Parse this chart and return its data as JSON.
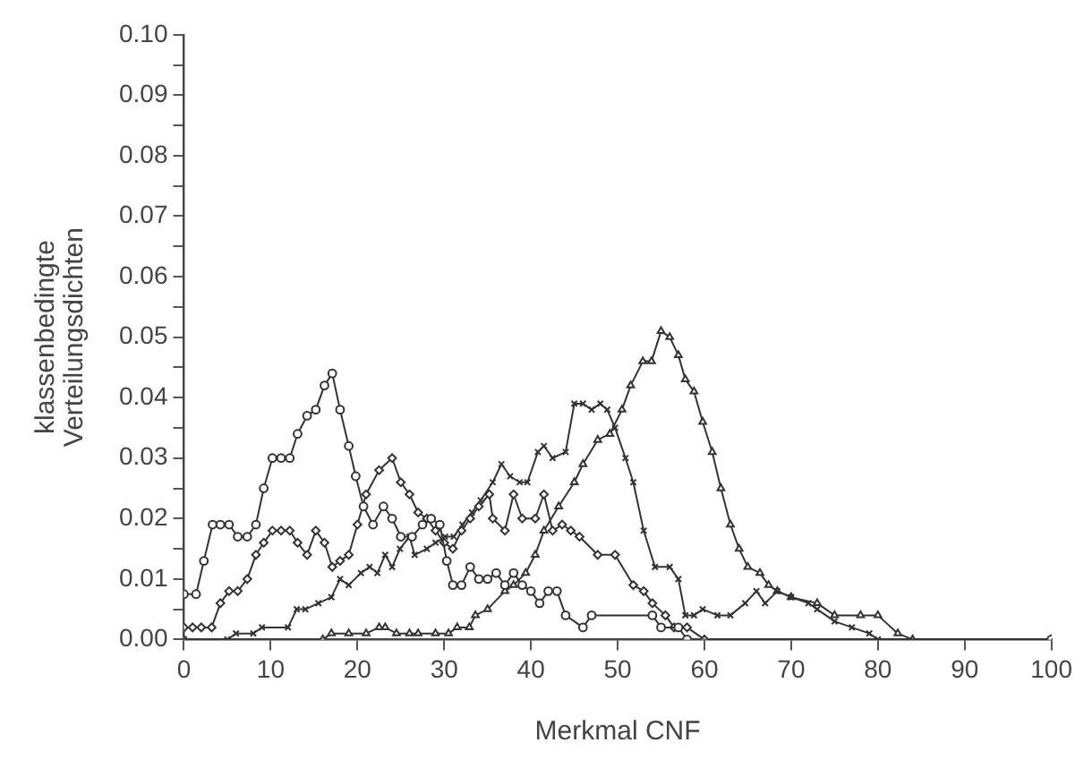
{
  "chart_data": {
    "type": "line",
    "xlabel": "Merkmal CNF",
    "ylabel": "klassenbedingte\nVerteilungsdichten",
    "xlim": [
      0,
      100
    ],
    "xticks": [
      0,
      10,
      20,
      30,
      40,
      50,
      60,
      70,
      80,
      90,
      100
    ],
    "ylim": [
      0,
      0.1
    ],
    "yticks": [
      {
        "value": 0,
        "label": "0.00"
      },
      {
        "value": 0.005,
        "label": null
      },
      {
        "value": 0.01,
        "label": "0.01"
      },
      {
        "value": 0.015,
        "label": null
      },
      {
        "value": 0.02,
        "label": "0.02"
      },
      {
        "value": 0.025,
        "label": null
      },
      {
        "value": 0.03,
        "label": "0.03"
      },
      {
        "value": 0.035,
        "label": null
      },
      {
        "value": 0.04,
        "label": "0.04"
      },
      {
        "value": 0.045,
        "label": null
      },
      {
        "value": 0.05,
        "label": "0.05"
      },
      {
        "value": 0.055,
        "label": null
      },
      {
        "value": 0.06,
        "label": "0.06"
      },
      {
        "value": 0.065,
        "label": null
      },
      {
        "value": 0.07,
        "label": "0.07"
      },
      {
        "value": 0.075,
        "label": null
      },
      {
        "value": 0.08,
        "label": "0.08"
      },
      {
        "value": 0.085,
        "label": null
      },
      {
        "value": 0.09,
        "label": "0.09"
      },
      {
        "value": 0.095,
        "label": null
      },
      {
        "value": 0.1,
        "label": "0.10"
      }
    ],
    "grid": false,
    "legend": false,
    "line_style": "solid",
    "series": [
      {
        "color": "#333333",
        "marker": "circle",
        "x": [
          0,
          1.4,
          2.3,
          3.3,
          4.2,
          5.2,
          6.2,
          7.3,
          8.3,
          9.2,
          10.2,
          11.2,
          12.2,
          13.1,
          14.2,
          15.2,
          16.2,
          17.1,
          18,
          19,
          19.8,
          20.7,
          21.8,
          23,
          24,
          25,
          26.3,
          27.5,
          28.5,
          29.5,
          30.3,
          31,
          32,
          33,
          34,
          35,
          36,
          37,
          38,
          39,
          40,
          41,
          42,
          43,
          44,
          46,
          47,
          54,
          55,
          57,
          58,
          100
        ],
        "values": [
          0.0075,
          0.0075,
          0.013,
          0.019,
          0.019,
          0.019,
          0.017,
          0.017,
          0.019,
          0.025,
          0.03,
          0.03,
          0.03,
          0.034,
          0.037,
          0.038,
          0.042,
          0.044,
          0.038,
          0.032,
          0.027,
          0.022,
          0.019,
          0.022,
          0.02,
          0.017,
          0.017,
          0.019,
          0.02,
          0.019,
          0.013,
          0.009,
          0.009,
          0.012,
          0.01,
          0.01,
          0.011,
          0.009,
          0.011,
          0.009,
          0.008,
          0.006,
          0.008,
          0.008,
          0.004,
          0.002,
          0.004,
          0.004,
          0.002,
          0.002,
          0,
          0
        ]
      },
      {
        "color": "#333333",
        "marker": "diamond",
        "x": [
          0,
          1,
          2,
          3.2,
          4.2,
          5.2,
          6.2,
          7.3,
          8.3,
          9.2,
          10.2,
          11.2,
          12.2,
          13.1,
          14.2,
          15.2,
          16.2,
          17.1,
          18,
          19,
          20,
          21,
          22.5,
          24,
          25,
          26,
          27,
          28,
          29,
          30,
          31,
          32,
          33,
          34,
          35.2,
          35.6,
          37,
          38,
          39,
          40.5,
          41.5,
          42.5,
          43.6,
          44.6,
          45.6,
          47.7,
          49.7,
          51.8,
          53,
          54,
          55.5,
          56.5,
          58,
          60,
          100
        ],
        "values": [
          0.002,
          0.002,
          0.002,
          0.002,
          0.006,
          0.008,
          0.008,
          0.01,
          0.014,
          0.016,
          0.018,
          0.018,
          0.018,
          0.016,
          0.014,
          0.018,
          0.016,
          0.012,
          0.013,
          0.014,
          0.019,
          0.024,
          0.028,
          0.03,
          0.026,
          0.024,
          0.021,
          0.02,
          0.018,
          0.016,
          0.015,
          0.018,
          0.02,
          0.022,
          0.024,
          0.02,
          0.018,
          0.024,
          0.02,
          0.02,
          0.024,
          0.018,
          0.019,
          0.018,
          0.017,
          0.014,
          0.014,
          0.009,
          0.008,
          0.006,
          0.004,
          0.002,
          0.002,
          0,
          0
        ]
      },
      {
        "color": "#333333",
        "marker": "cross",
        "x": [
          0,
          5,
          6,
          8,
          9,
          12,
          13,
          14,
          15.5,
          17,
          18,
          19,
          20.4,
          21.4,
          22.3,
          23.2,
          24,
          24.9,
          26,
          26.6,
          28,
          29,
          30.1,
          31.1,
          32.1,
          33.2,
          34.2,
          35.6,
          36.6,
          37.6,
          38.7,
          39.6,
          40.8,
          41.5,
          42.5,
          44,
          45,
          46,
          47,
          48,
          48.8,
          49.7,
          50.9,
          51.8,
          53,
          54.3,
          56,
          57,
          57.8,
          58.8,
          59.8,
          61.5,
          63,
          64.7,
          66,
          67,
          68.4,
          70,
          72,
          73,
          75,
          77,
          79,
          80,
          100
        ],
        "values": [
          0,
          0,
          0.001,
          0.001,
          0.002,
          0.002,
          0.005,
          0.005,
          0.006,
          0.007,
          0.01,
          0.009,
          0.011,
          0.012,
          0.011,
          0.014,
          0.012,
          0.015,
          0.017,
          0.014,
          0.015,
          0.016,
          0.017,
          0.017,
          0.019,
          0.021,
          0.023,
          0.026,
          0.029,
          0.027,
          0.026,
          0.026,
          0.031,
          0.032,
          0.03,
          0.031,
          0.039,
          0.039,
          0.038,
          0.039,
          0.038,
          0.035,
          0.03,
          0.026,
          0.018,
          0.012,
          0.012,
          0.01,
          0.004,
          0.004,
          0.005,
          0.004,
          0.004,
          0.006,
          0.008,
          0.006,
          0.008,
          0.007,
          0.006,
          0.005,
          0.003,
          0.002,
          0.001,
          0,
          0
        ]
      },
      {
        "color": "#333333",
        "marker": "triangle",
        "x": [
          0,
          16,
          17,
          19,
          21,
          22.5,
          23.2,
          24.5,
          26,
          27,
          29,
          30.5,
          31.5,
          32.9,
          33.6,
          35,
          37,
          38,
          39.4,
          40.5,
          41.5,
          43.2,
          45,
          46,
          47.7,
          49.1,
          50.5,
          51.5,
          52.9,
          53.9,
          55,
          56,
          57,
          57.8,
          58.8,
          59.8,
          60.9,
          61.9,
          63,
          64,
          65,
          66.4,
          67.4,
          68.4,
          70,
          73,
          75,
          78,
          80,
          82.3,
          84,
          100
        ],
        "values": [
          0,
          0,
          0.001,
          0.001,
          0.001,
          0.002,
          0.002,
          0.001,
          0.001,
          0.001,
          0.001,
          0.001,
          0.002,
          0.002,
          0.004,
          0.005,
          0.008,
          0.009,
          0.011,
          0.014,
          0.018,
          0.022,
          0.026,
          0.029,
          0.033,
          0.034,
          0.038,
          0.042,
          0.046,
          0.046,
          0.051,
          0.05,
          0.047,
          0.043,
          0.041,
          0.036,
          0.031,
          0.025,
          0.019,
          0.015,
          0.012,
          0.011,
          0.009,
          0.008,
          0.007,
          0.006,
          0.004,
          0.004,
          0.004,
          0.001,
          0,
          0
        ]
      }
    ]
  }
}
